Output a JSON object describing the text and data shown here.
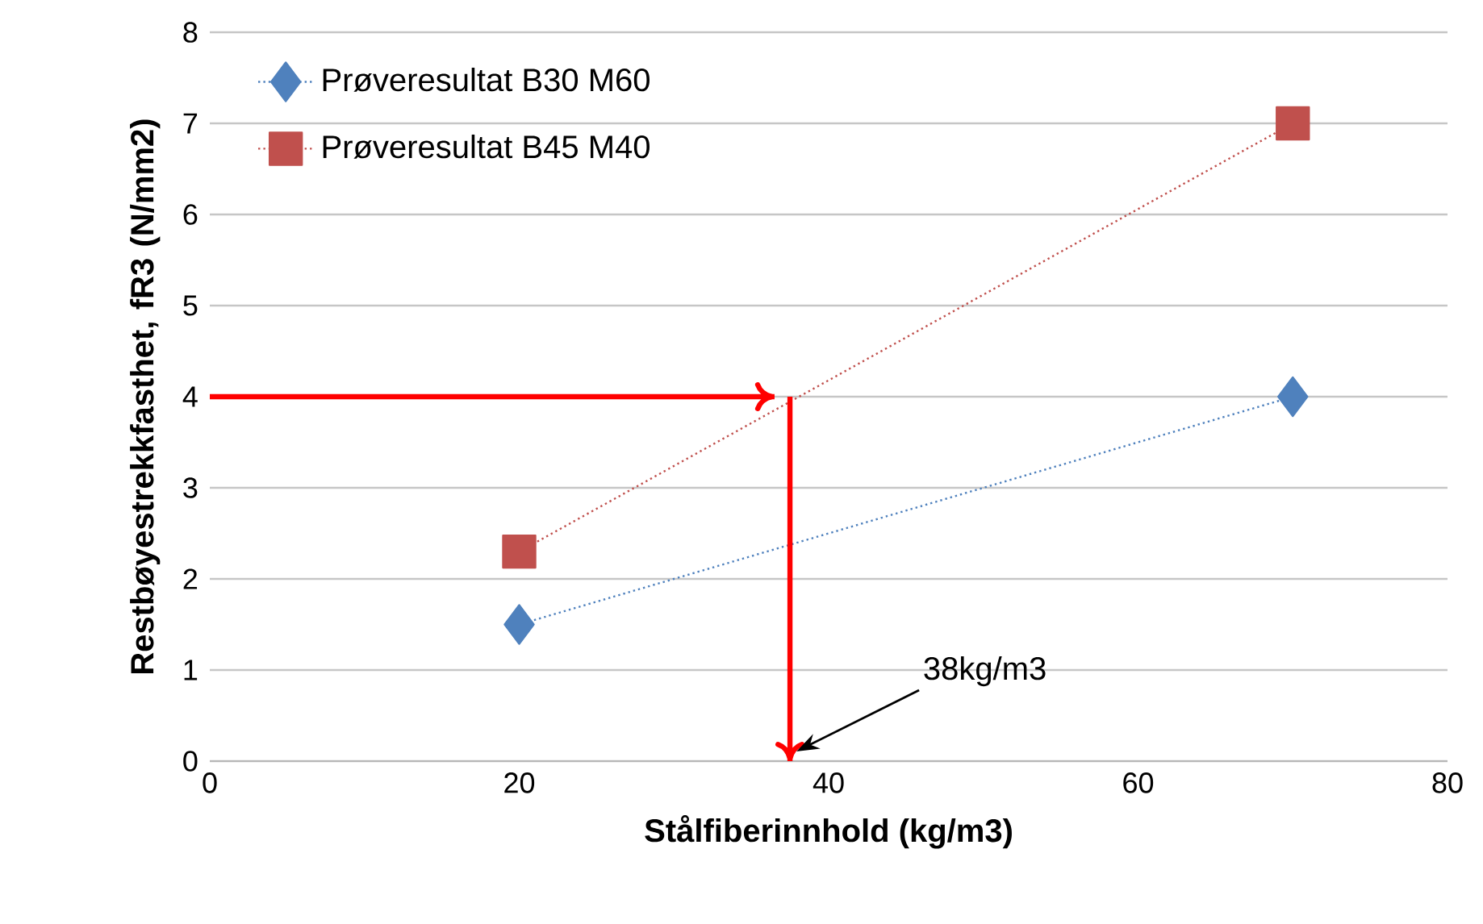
{
  "chart_data": {
    "type": "line",
    "xlabel": "Stålfiberinnhold (kg/m3)",
    "ylabel": "Restbøyestrekkfasthet, fR3 (N/mm2)",
    "series": [
      {
        "name": "Prøveresultat B30 M60",
        "color": "#4f81bd",
        "x": [
          20,
          70
        ],
        "values": [
          1.5,
          4
        ],
        "marker": "diamond"
      },
      {
        "name": "Prøveresultat B45 M40",
        "color": "#c0504d",
        "x": [
          20,
          70
        ],
        "values": [
          2.3,
          7
        ],
        "marker": "square"
      },
      {
        "color": "#ff0000",
        "x": [
          0,
          36.5
        ],
        "values": [
          4,
          4
        ],
        "marker": "none",
        "line_style": "solid"
      },
      {
        "color": "#ff0000",
        "x": [
          37.5,
          37.5
        ],
        "values": [
          4,
          0
        ],
        "marker": "none",
        "line_style": "solid"
      }
    ],
    "xlim": [
      0,
      80
    ],
    "xticks": [
      0,
      20,
      40,
      60,
      80
    ],
    "ylim": [
      0,
      8
    ],
    "yticks": [
      0,
      1,
      2,
      3,
      4,
      5,
      6,
      7,
      8
    ],
    "grid": "y",
    "legend": "top left",
    "line_style": "dotted",
    "annotations": [
      "38kg/m3"
    ]
  }
}
